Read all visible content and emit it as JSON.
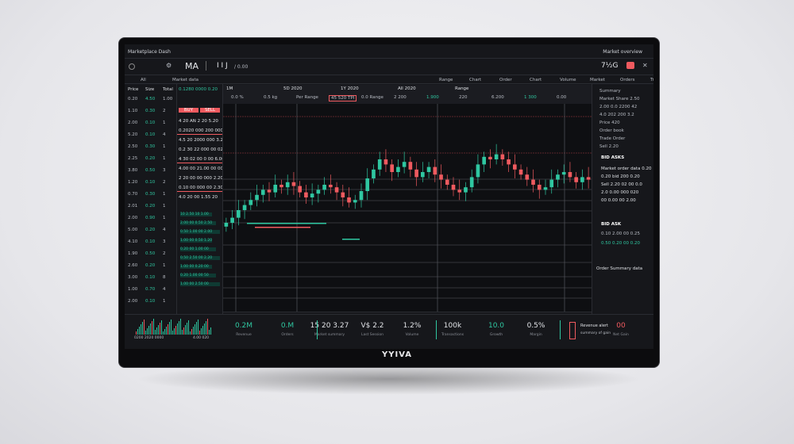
{
  "brand": "YYIVA",
  "topbar": {
    "title": "Marketplace Dash",
    "right": "Market overview"
  },
  "header": {
    "logo": "MA",
    "ticker": "I I J",
    "ticker_tag": "/ 0.00",
    "price": "7½G",
    "close": "✕"
  },
  "toolbar": {
    "items": [
      "All",
      "Market data",
      "Range",
      "Chart",
      "Order",
      "Chart",
      "Volume",
      "Market",
      "Orders",
      "Trade"
    ]
  },
  "chart_tabs": {
    "items": [
      "1M",
      "5D 2020",
      "1Y 2020",
      "All 2020",
      "Range"
    ],
    "values": [
      "0.0 %",
      "0.5 kg",
      "Per Range",
      "45 520 TPI",
      "0.0 Range",
      "2 200",
      "1.900",
      "220",
      "6.200",
      "1 300",
      "0.00"
    ]
  },
  "left_panel": {
    "head": [
      "Price",
      "Size",
      "Total"
    ],
    "rows": [
      [
        "0.20",
        "4.50",
        "1.00"
      ],
      [
        "1.10",
        "0.30",
        "2"
      ],
      [
        "2.00",
        "0.10",
        "1"
      ],
      [
        "5.20",
        "0.10",
        "4"
      ],
      [
        "2.50",
        "0.30",
        "1"
      ],
      [
        "2.25",
        "0.20",
        "1"
      ],
      [
        "3.80",
        "0.50",
        "3"
      ],
      [
        "1.20",
        "0.10",
        "2"
      ],
      [
        "0.70",
        "0.30",
        "1"
      ],
      [
        "2.01",
        "0.20",
        "1"
      ],
      [
        "2.00",
        "0.90",
        "1"
      ],
      [
        "5.00",
        "0.20",
        "4"
      ],
      [
        "4.10",
        "0.10",
        "3"
      ],
      [
        "1.90",
        "0.50",
        "2"
      ],
      [
        "2.60",
        "0.20",
        "1"
      ],
      [
        "3.00",
        "0.10",
        "8"
      ],
      [
        "1.00",
        "0.70",
        "4"
      ],
      [
        "2.00",
        "0.10",
        "1"
      ]
    ]
  },
  "orders": {
    "head": "0.1280 0000 0.20",
    "buttons": [
      "BUY",
      "SELL"
    ],
    "rows": [
      "4 20 AN 2 20 5.20",
      "0.2020 000 200 000",
      "4.5 20 2000 000 3.20",
      "0.2 30 22 000 00 020",
      "4 30 02 00 0 00 6.00",
      "4.00 00 21.00 00 00",
      "2 20 00 00 000 2.20",
      "0.10 00 000 00 2.30",
      "4.0 20 00 1.55 20"
    ],
    "green_rows": [
      "10 2.50 10 1.00",
      "2.00 00 0.50 2.50",
      "0.50 1.00 00 2.00",
      "1.00 00 0.50 1.20",
      "0.20 00 1.00 00",
      "0.50 2.50 00 2.20",
      "1.00 00 0.20 00",
      "0.20 1.00 00 50",
      "1.00 00 2.50 00"
    ]
  },
  "right_panel": {
    "rows": [
      "Summary",
      "Market Share 2.50",
      "2.00 0.0 2200 42",
      "4.0 202 200 3.2",
      "Price 420",
      "Order book",
      "Trade Order",
      "Sell 2.20"
    ],
    "section": "BID ASKS",
    "asks": [
      "Market order data 0.20",
      "0.20 bid 200 0.20",
      "Sell 2.20 02 00 0.0",
      "2.0 0.00 000 020",
      "00 0.00 00 2.00"
    ],
    "section2": "BID ASK",
    "bids": [
      "0.10 2.00 00 0.25",
      "0.50 0.20 00 0.20"
    ],
    "footer": "Order Summary data"
  },
  "stats": [
    {
      "value": "0.2M",
      "label": "Revenue"
    },
    {
      "value": "0.M",
      "label": "Orders"
    },
    {
      "value": "15 20 3.27",
      "label": "Market summary"
    },
    {
      "value": "V$ 2.2",
      "label": "Last Session"
    },
    {
      "value": "1.2%",
      "label": "Volume"
    },
    {
      "value": "100k",
      "label": "Transactions"
    },
    {
      "value": "10.0",
      "label": "Growth"
    },
    {
      "value": "0.5%",
      "label": "Margin"
    },
    {
      "value": "00",
      "label": "Net Gain"
    }
  ],
  "mini_chart": {
    "label_left": "0200 2020 0000",
    "label_right": "4.00 020"
  },
  "alert": {
    "title": "Revenue alert",
    "sub": "summary of gain"
  },
  "colors": {
    "up": "#2fc7a1",
    "down": "#ef5a5f",
    "bg": "#16171b"
  },
  "chart_data": {
    "type": "candlestick",
    "closes": [
      20,
      24,
      30,
      34,
      38,
      42,
      46,
      44,
      50,
      48,
      52,
      49,
      44,
      40,
      43,
      46,
      50,
      48,
      44,
      40,
      36,
      38,
      45,
      55,
      62,
      70,
      66,
      60,
      64,
      68,
      62,
      56,
      60,
      64,
      58,
      54,
      50,
      46,
      44,
      48,
      56,
      66,
      72,
      70,
      74,
      70,
      66,
      62,
      58,
      54,
      50,
      46,
      48,
      54,
      58,
      60,
      56,
      52,
      56,
      54
    ]
  }
}
